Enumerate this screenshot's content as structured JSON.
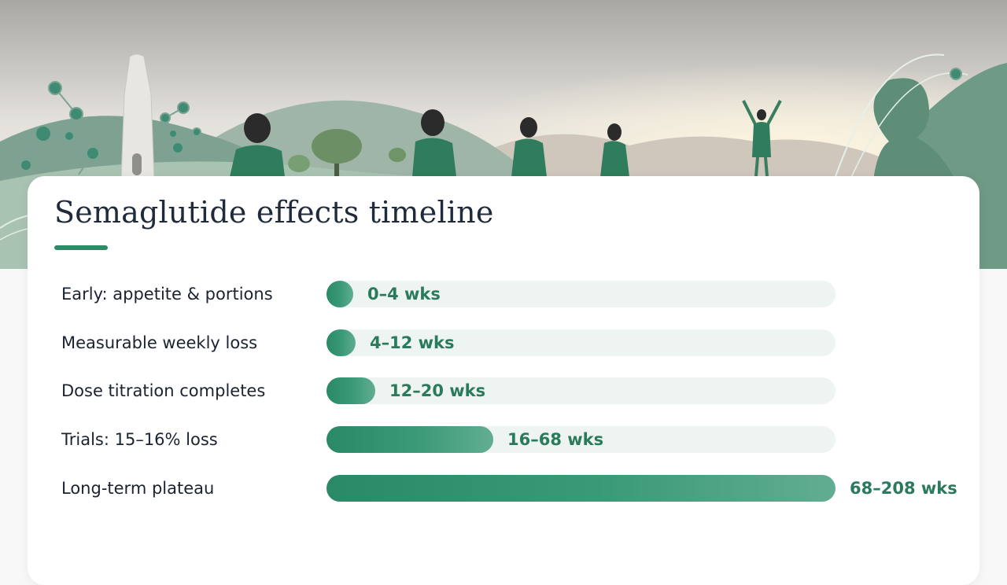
{
  "colors": {
    "accent": "#2f8a68",
    "bar_start": "#2a8a67",
    "bar_end": "#62ad92",
    "track": "#eef4f1",
    "value_text": "#2a7a5c"
  },
  "chart_data": {
    "type": "bar",
    "orientation": "horizontal",
    "title": "Semaglutide effects timeline",
    "categories": [
      "Early: appetite & portions",
      "Measurable weekly loss",
      "Dose titration completes",
      "Trials: 15–16% loss",
      "Long-term plateau"
    ],
    "series": [
      {
        "values": [
          4,
          12,
          20,
          68,
          208
        ],
        "labels": [
          "0–4 wks",
          "4–12 wks",
          "12–20 wks",
          "16–68 wks",
          "68–208 wks"
        ]
      }
    ],
    "xlim": [
      0,
      208
    ],
    "grid": false,
    "legend": "none"
  }
}
